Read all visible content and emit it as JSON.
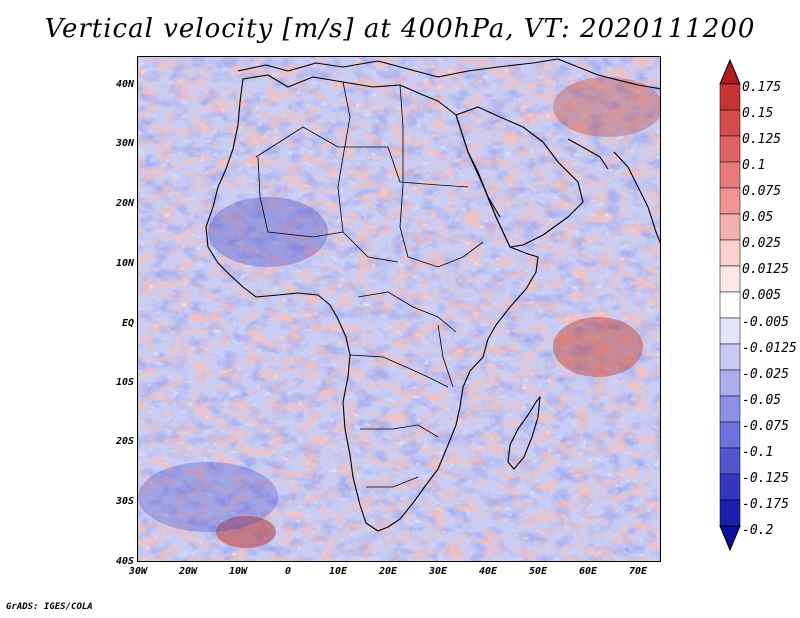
{
  "title": "Vertical velocity [m/s] at 400hPa, VT: 2020111200",
  "footer": "GrADS: IGES/COLA",
  "lat_labels": [
    "40N",
    "30N",
    "20N",
    "10N",
    "EQ",
    "10S",
    "20S",
    "30S",
    "40S"
  ],
  "lon_labels": [
    "30W",
    "20W",
    "10W",
    "0",
    "10E",
    "20E",
    "30E",
    "40E",
    "50E",
    "60E",
    "70E"
  ],
  "colorbar": {
    "labels": [
      "0.175",
      "0.15",
      "0.125",
      "0.1",
      "0.075",
      "0.05",
      "0.025",
      "0.0125",
      "0.005",
      "-0.005",
      "-0.0125",
      "-0.025",
      "-0.05",
      "-0.075",
      "-0.1",
      "-0.125",
      "-0.175",
      "-0.2"
    ],
    "colors": [
      "#b11b1b",
      "#c73232",
      "#d64a4a",
      "#e06363",
      "#e87c7c",
      "#ef9595",
      "#f4b0b0",
      "#f9cfcf",
      "#fde8e8",
      "#ffffff",
      "#e4e4fb",
      "#c9c9f5",
      "#abadee",
      "#8d8fe6",
      "#6f71dc",
      "#5254d0",
      "#3436c2",
      "#1c1eb0",
      "#0d0f9c"
    ]
  },
  "field": {
    "background": "#c9cdf3",
    "positive_color": "#e88a86",
    "negative_color": "#6670dc",
    "coastline_color": "#000000"
  }
}
